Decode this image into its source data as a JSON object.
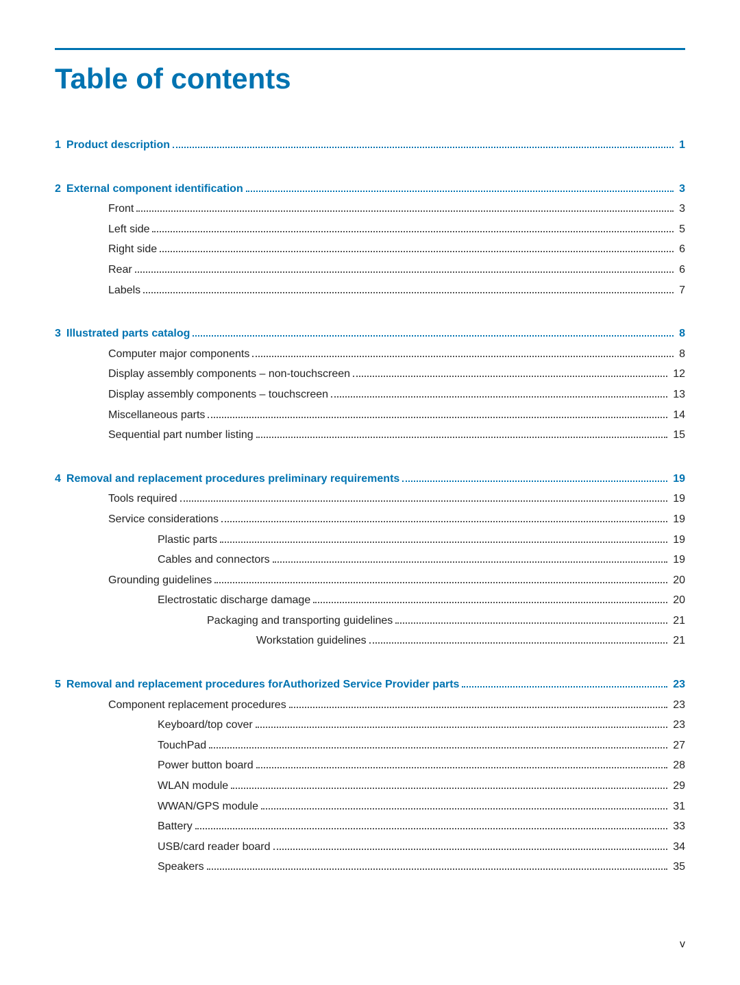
{
  "colors": {
    "accent": "#0073b1",
    "text": "#222222",
    "rule": "#0073b1",
    "bg": "#ffffff"
  },
  "page_title": "Table of contents",
  "page_label": "v",
  "sections": [
    {
      "chapter_num": "1",
      "chapter_label": "Product description",
      "chapter_page": "1",
      "items": []
    },
    {
      "chapter_num": "2",
      "chapter_label": "External component identification",
      "chapter_page": "3",
      "items": [
        {
          "level": 1,
          "label": "Front",
          "page": "3"
        },
        {
          "level": 1,
          "label": "Left side",
          "page": "5"
        },
        {
          "level": 1,
          "label": "Right side",
          "page": "6"
        },
        {
          "level": 1,
          "label": "Rear",
          "page": "6"
        },
        {
          "level": 1,
          "label": "Labels",
          "page": "7"
        }
      ]
    },
    {
      "chapter_num": "3",
      "chapter_label": "Illustrated parts catalog",
      "chapter_page": "8",
      "items": [
        {
          "level": 1,
          "label": "Computer major components",
          "page": "8"
        },
        {
          "level": 1,
          "label": "Display assembly components – non-touchscreen",
          "page": "12"
        },
        {
          "level": 1,
          "label": "Display assembly components – touchscreen",
          "page": "13"
        },
        {
          "level": 1,
          "label": "Miscellaneous parts",
          "page": "14"
        },
        {
          "level": 1,
          "label": "Sequential part number listing",
          "page": "15"
        }
      ]
    },
    {
      "chapter_num": "4",
      "chapter_label": "Removal and replacement procedures preliminary requirements",
      "chapter_page": "19",
      "items": [
        {
          "level": 1,
          "label": "Tools required",
          "page": "19"
        },
        {
          "level": 1,
          "label": "Service considerations",
          "page": "19"
        },
        {
          "level": 2,
          "label": "Plastic parts",
          "page": "19"
        },
        {
          "level": 2,
          "label": "Cables and connectors",
          "page": "19"
        },
        {
          "level": 1,
          "label": "Grounding guidelines",
          "page": "20"
        },
        {
          "level": 2,
          "label": "Electrostatic discharge damage",
          "page": "20"
        },
        {
          "level": 3,
          "label": "Packaging and transporting guidelines",
          "page": "21"
        },
        {
          "level": 4,
          "label": "Workstation guidelines",
          "page": "21"
        }
      ]
    },
    {
      "chapter_num": "5",
      "chapter_label": "Removal and replacement procedures forAuthorized Service Provider parts",
      "chapter_page": "23",
      "items": [
        {
          "level": 1,
          "label": "Component replacement procedures",
          "page": "23"
        },
        {
          "level": 2,
          "label": "Keyboard/top cover",
          "page": "23"
        },
        {
          "level": 2,
          "label": "TouchPad",
          "page": "27"
        },
        {
          "level": 2,
          "label": "Power button board",
          "page": "28"
        },
        {
          "level": 2,
          "label": "WLAN module",
          "page": "29"
        },
        {
          "level": 2,
          "label": "WWAN/GPS module",
          "page": "31"
        },
        {
          "level": 2,
          "label": "Battery",
          "page": "33"
        },
        {
          "level": 2,
          "label": "USB/card reader board",
          "page": "34"
        },
        {
          "level": 2,
          "label": "Speakers",
          "page": "35"
        }
      ]
    }
  ]
}
